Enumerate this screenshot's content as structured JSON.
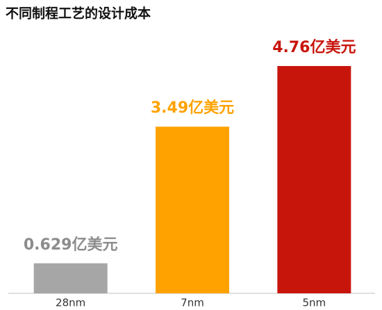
{
  "chart_data": {
    "type": "bar",
    "title": "不同制程工艺的设计成本",
    "categories": [
      "28nm",
      "7nm",
      "5nm"
    ],
    "values": [
      0.629,
      3.49,
      4.76
    ],
    "value_labels": [
      "0.629亿美元",
      "3.49亿美元",
      "4.76亿美元"
    ],
    "colors": [
      "#a6a6a6",
      "#ffa200",
      "#c8150c"
    ]
  }
}
